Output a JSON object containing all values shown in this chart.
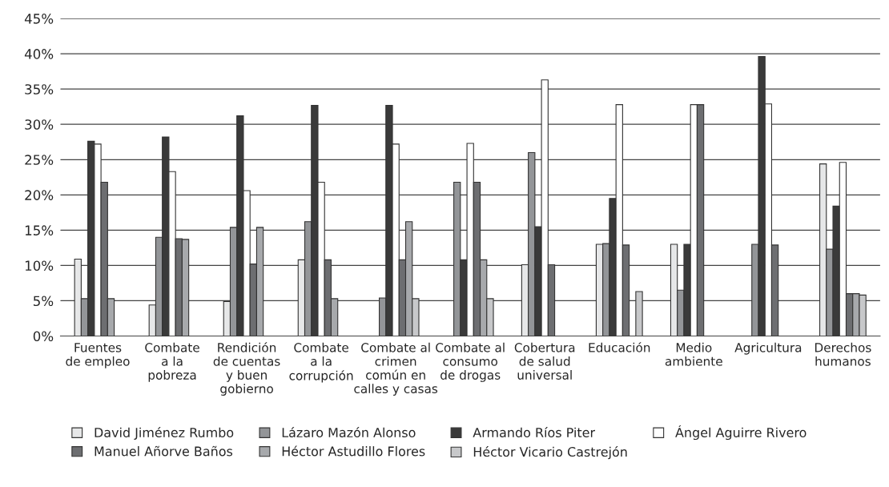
{
  "chart_data": {
    "type": "bar",
    "categories": [
      "Fuentes\nde empleo",
      "Combate\na la\npobreza",
      "Rendición\nde cuentas\ny buen\ngobierno",
      "Combate\na la\ncorrupción",
      "Combate al\ncrimen\ncomún en\ncalles y casas",
      "Combate al\nconsumo\nde drogas",
      "Cobertura\nde salud\nuniversal",
      "Educación",
      "Medio\nambiente",
      "Agricultura",
      "Derechos\nhumanos"
    ],
    "series": [
      {
        "name": "David Jiménez Rumbo",
        "color": "#e6e7e8",
        "values": [
          10.9,
          4.4,
          4.9,
          10.8,
          null,
          null,
          10.1,
          13.0,
          13.0,
          null,
          24.4
        ]
      },
      {
        "name": "Lázaro Mazón Alonso",
        "color": "#939598",
        "values": [
          5.3,
          14.0,
          15.4,
          16.2,
          5.4,
          21.8,
          26.0,
          13.1,
          6.5,
          13.0,
          12.3
        ]
      },
      {
        "name": "Armando Ríos Piter",
        "color": "#3a3a3a",
        "values": [
          27.6,
          28.2,
          31.2,
          32.7,
          32.7,
          10.8,
          15.5,
          19.5,
          13.0,
          39.6,
          18.4
        ]
      },
      {
        "name": "Ángel Aguirre Rivero",
        "color": "#ffffff",
        "values": [
          27.2,
          23.3,
          20.6,
          21.8,
          27.2,
          27.3,
          36.3,
          32.8,
          32.8,
          32.9,
          24.6
        ]
      },
      {
        "name": "Manuel Añorve Baños",
        "color": "#6d6e71",
        "values": [
          21.8,
          13.8,
          10.2,
          10.8,
          10.8,
          21.8,
          10.1,
          12.9,
          32.8,
          12.9,
          6.0
        ]
      },
      {
        "name": "Héctor Astudillo Flores",
        "color": "#a7a9ac",
        "values": [
          5.3,
          13.7,
          15.4,
          5.3,
          16.2,
          10.8,
          null,
          null,
          null,
          null,
          6.0
        ]
      },
      {
        "name": "Héctor Vicario Castrejón",
        "color": "#c7c8ca",
        "values": [
          null,
          null,
          null,
          null,
          5.3,
          5.3,
          null,
          6.3,
          null,
          null,
          5.8
        ]
      }
    ],
    "ylim": [
      0,
      45
    ],
    "yticks": [
      {
        "value": 0,
        "label": "0%"
      },
      {
        "value": 5,
        "label": "5%"
      },
      {
        "value": 10,
        "label": "10%"
      },
      {
        "value": 15,
        "label": "15%"
      },
      {
        "value": 20,
        "label": "20%"
      },
      {
        "value": 25,
        "label": "25%"
      },
      {
        "value": 30,
        "label": "30%"
      },
      {
        "value": 35,
        "label": "35%"
      },
      {
        "value": 40,
        "label": "40%"
      },
      {
        "value": 45,
        "label": "45%"
      }
    ],
    "grid": "y",
    "legend": "bottom"
  }
}
